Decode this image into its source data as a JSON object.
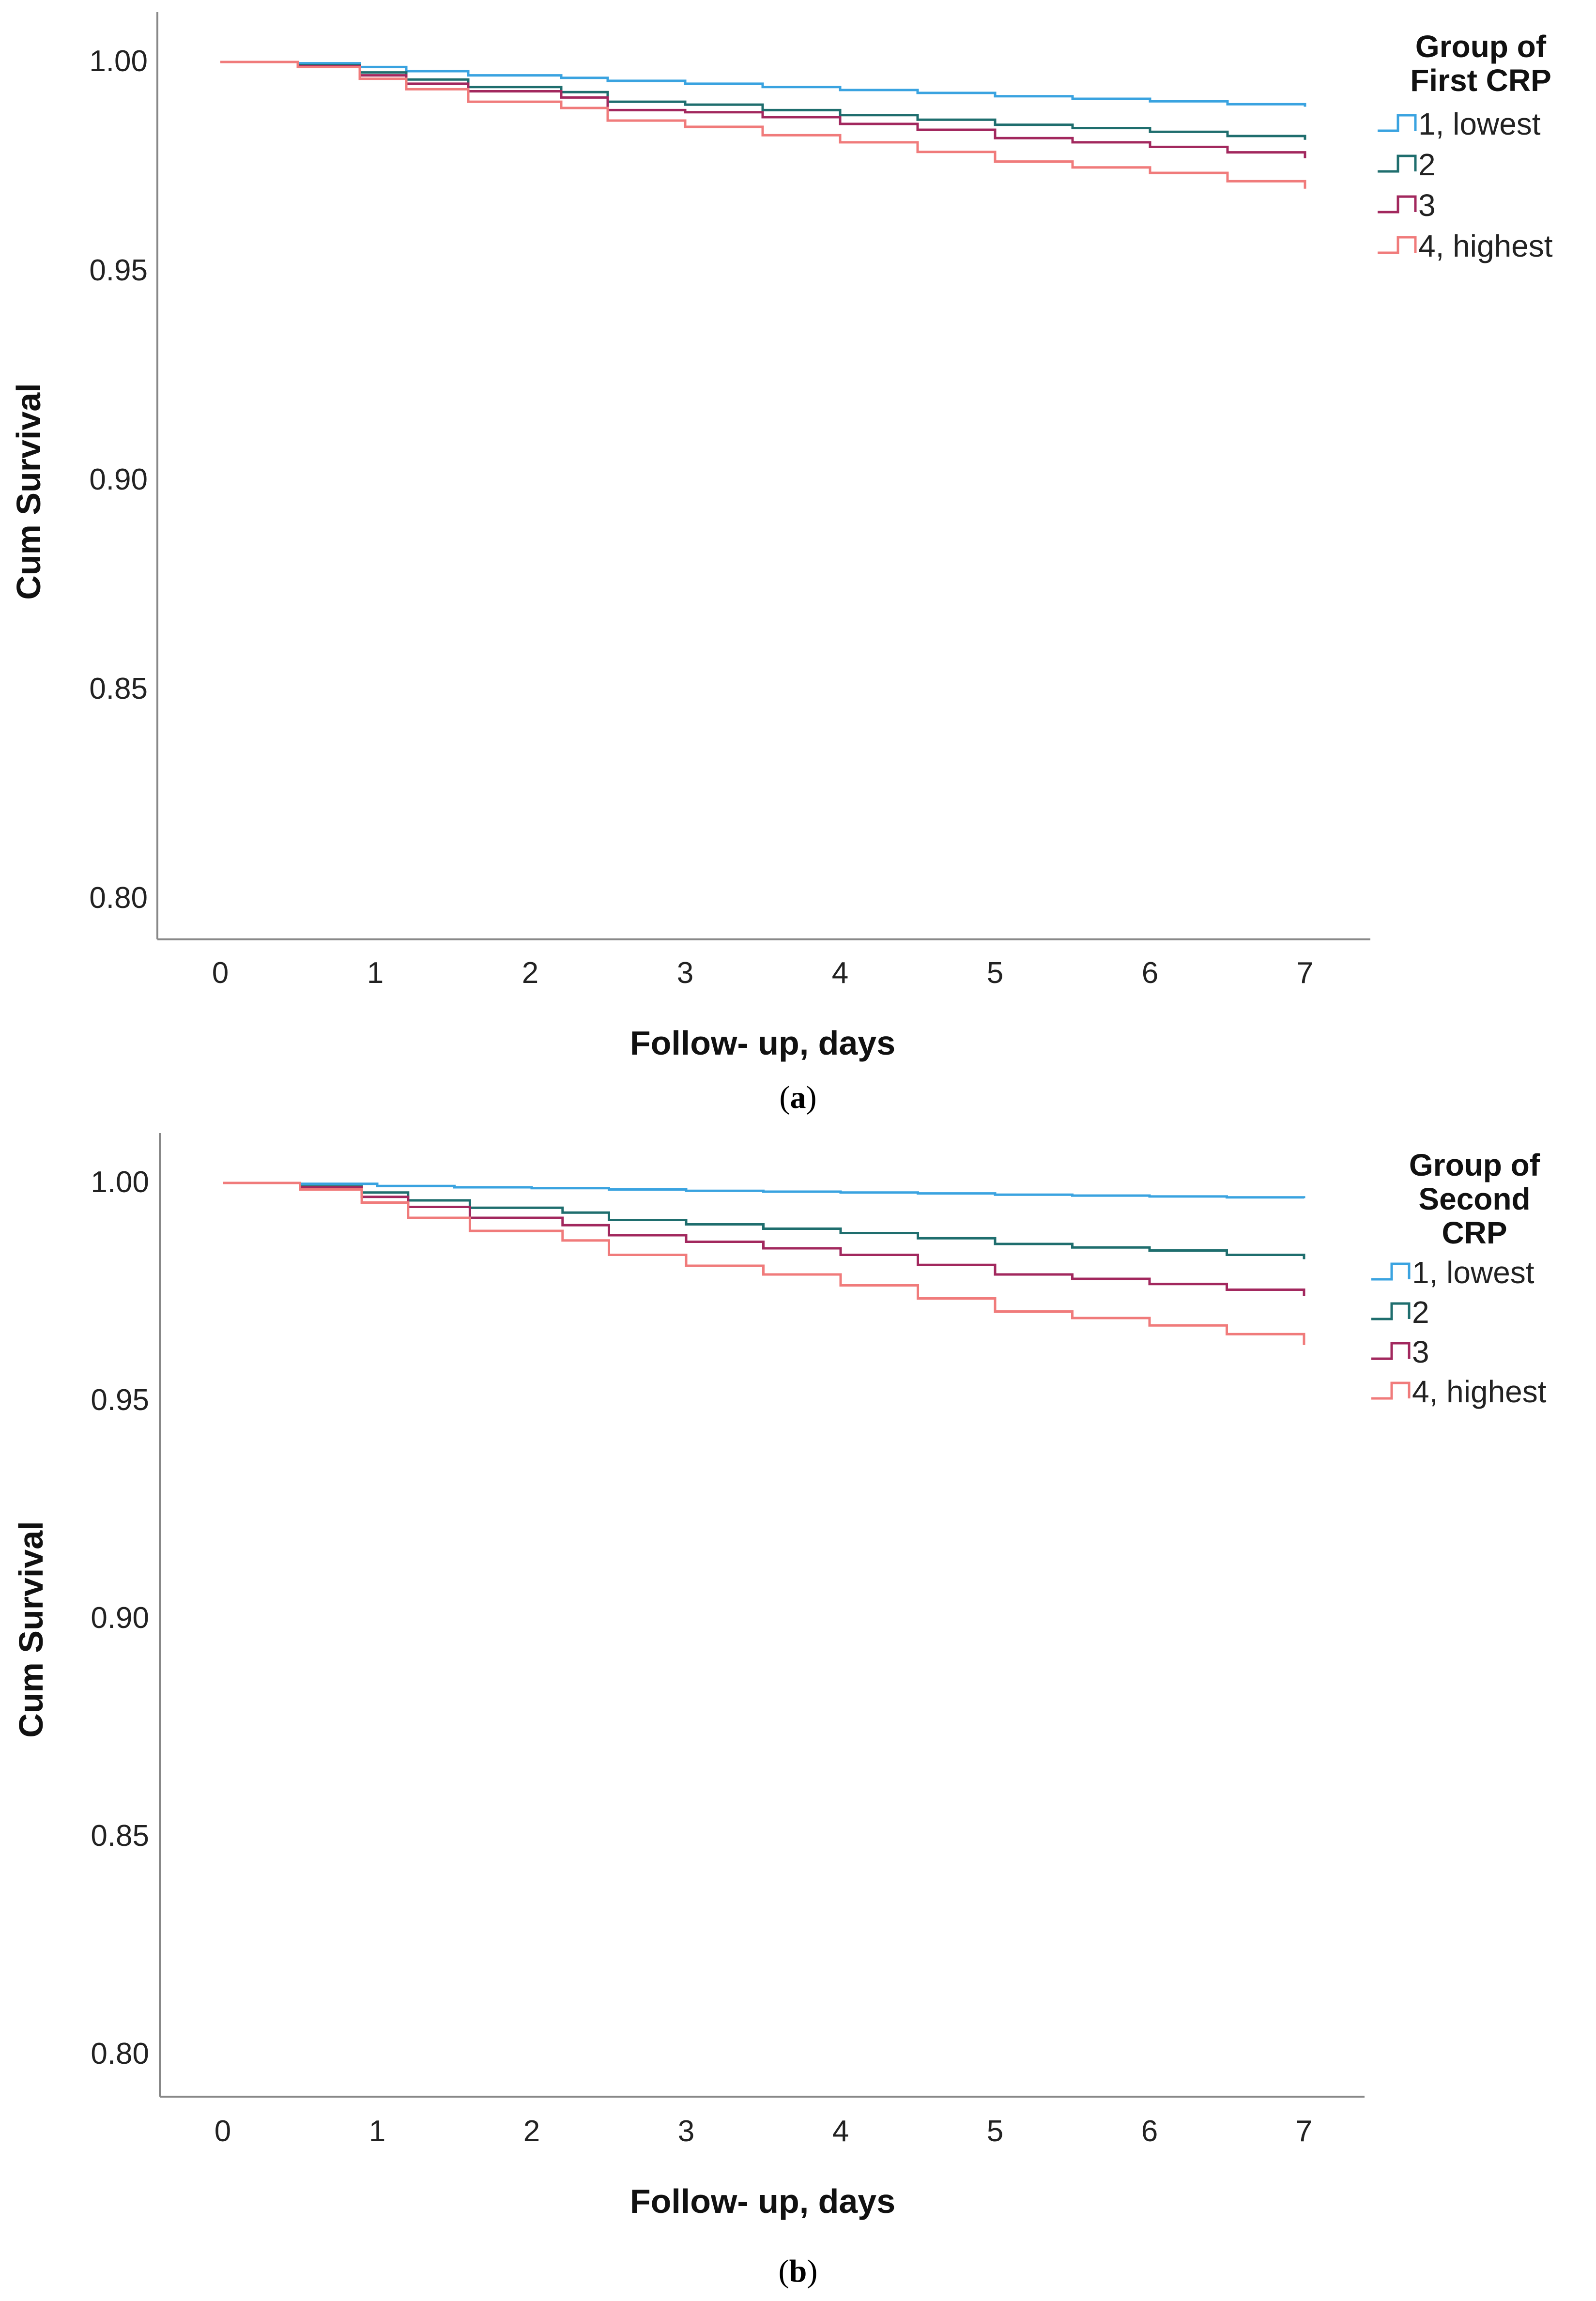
{
  "chart_data": [
    {
      "type": "line",
      "panel": "a",
      "caption_open": "(",
      "caption_letter": "a",
      "caption_close": ")",
      "xlabel": "Follow- up, days",
      "ylabel": "Cum Survival",
      "xlim": [
        0,
        7
      ],
      "ylim": [
        0.8,
        1.0
      ],
      "xticks": [
        0,
        1,
        2,
        3,
        4,
        5,
        6,
        7
      ],
      "yticks": [
        "0.80",
        "0.85",
        "0.90",
        "0.95",
        "1.00"
      ],
      "legend_title_lines": [
        "Group of",
        "First CRP"
      ],
      "legend_position": "top-right outside",
      "series": [
        {
          "name": "1, lowest",
          "color": "#3aa3e0",
          "x": [
            0,
            0.5,
            0.9,
            1.2,
            1.6,
            2.2,
            2.5,
            3.0,
            3.5,
            4.0,
            4.5,
            5.0,
            5.5,
            6.0,
            6.5,
            7.0
          ],
          "y": [
            1.0,
            0.9997,
            0.9988,
            0.9978,
            0.9968,
            0.9962,
            0.9955,
            0.9948,
            0.994,
            0.9933,
            0.9926,
            0.9918,
            0.9912,
            0.9906,
            0.9899,
            0.9893
          ]
        },
        {
          "name": "2",
          "color": "#1f6e6e",
          "x": [
            0,
            0.5,
            0.9,
            1.2,
            1.6,
            2.2,
            2.5,
            3.0,
            3.5,
            4.0,
            4.5,
            5.0,
            5.5,
            6.0,
            6.5,
            7.0
          ],
          "y": [
            1.0,
            0.9992,
            0.9975,
            0.9958,
            0.994,
            0.9928,
            0.9905,
            0.9898,
            0.9885,
            0.9873,
            0.9862,
            0.985,
            0.9842,
            0.9833,
            0.9823,
            0.9814
          ]
        },
        {
          "name": "3",
          "color": "#a2285e",
          "x": [
            0,
            0.5,
            0.9,
            1.2,
            1.6,
            2.2,
            2.5,
            3.0,
            3.5,
            4.0,
            4.5,
            5.0,
            5.5,
            6.0,
            6.5,
            7.0
          ],
          "y": [
            1.0,
            0.999,
            0.9968,
            0.9948,
            0.993,
            0.9915,
            0.9885,
            0.988,
            0.9868,
            0.9852,
            0.9838,
            0.9818,
            0.9808,
            0.9797,
            0.9784,
            0.977
          ]
        },
        {
          "name": "4, highest",
          "color": "#f07b7b",
          "x": [
            0,
            0.5,
            0.9,
            1.2,
            1.6,
            2.2,
            2.5,
            3.0,
            3.5,
            4.0,
            4.5,
            5.0,
            5.5,
            6.0,
            6.5,
            7.0
          ],
          "y": [
            1.0,
            0.9988,
            0.996,
            0.9935,
            0.9905,
            0.989,
            0.986,
            0.9845,
            0.9825,
            0.9808,
            0.9785,
            0.9762,
            0.9748,
            0.9735,
            0.9715,
            0.9697
          ]
        }
      ]
    },
    {
      "type": "line",
      "panel": "b",
      "caption_open": "(",
      "caption_letter": "b",
      "caption_close": ")",
      "xlabel": "Follow- up, days",
      "ylabel": "Cum Survival",
      "xlim": [
        0,
        7
      ],
      "ylim": [
        0.8,
        1.0
      ],
      "xticks": [
        0,
        1,
        2,
        3,
        4,
        5,
        6,
        7
      ],
      "yticks": [
        "0.80",
        "0.85",
        "0.90",
        "0.95",
        "1.00"
      ],
      "legend_title_lines": [
        "Group of",
        "Second",
        "CRP"
      ],
      "legend_position": "top-right outside",
      "series": [
        {
          "name": "1, lowest",
          "color": "#3aa3e0",
          "x": [
            0,
            0.5,
            1.0,
            1.5,
            2.0,
            2.5,
            3.0,
            3.5,
            4.0,
            4.5,
            5.0,
            5.5,
            6.0,
            6.5,
            7.0
          ],
          "y": [
            1.0,
            0.9998,
            0.9993,
            0.999,
            0.9988,
            0.9985,
            0.9982,
            0.998,
            0.9978,
            0.9976,
            0.9973,
            0.9971,
            0.9969,
            0.9967,
            0.9965
          ]
        },
        {
          "name": "2",
          "color": "#1f6e6e",
          "x": [
            0,
            0.5,
            0.9,
            1.2,
            1.6,
            2.2,
            2.5,
            3.0,
            3.5,
            4.0,
            4.5,
            5.0,
            5.5,
            6.0,
            6.5,
            7.0
          ],
          "y": [
            1.0,
            0.9992,
            0.9978,
            0.996,
            0.9943,
            0.9932,
            0.9915,
            0.9905,
            0.9895,
            0.9885,
            0.9873,
            0.986,
            0.9852,
            0.9845,
            0.9835,
            0.9825
          ]
        },
        {
          "name": "3",
          "color": "#a2285e",
          "x": [
            0,
            0.5,
            0.9,
            1.2,
            1.6,
            2.2,
            2.5,
            3.0,
            3.5,
            4.0,
            4.5,
            5.0,
            5.5,
            6.0,
            6.5,
            7.0
          ],
          "y": [
            1.0,
            0.999,
            0.9968,
            0.9945,
            0.992,
            0.9903,
            0.988,
            0.9865,
            0.985,
            0.9835,
            0.9812,
            0.979,
            0.978,
            0.9768,
            0.9755,
            0.974
          ]
        },
        {
          "name": "4, highest",
          "color": "#f07b7b",
          "x": [
            0,
            0.5,
            0.9,
            1.2,
            1.6,
            2.2,
            2.5,
            3.0,
            3.5,
            4.0,
            4.5,
            5.0,
            5.5,
            6.0,
            6.5,
            7.0
          ],
          "y": [
            1.0,
            0.9985,
            0.9955,
            0.992,
            0.989,
            0.9868,
            0.9835,
            0.981,
            0.979,
            0.9765,
            0.9735,
            0.9705,
            0.969,
            0.9673,
            0.9653,
            0.9628
          ]
        }
      ]
    }
  ]
}
